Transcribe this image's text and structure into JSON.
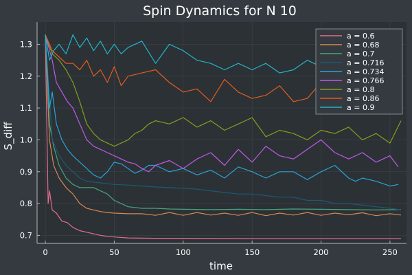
{
  "colors": {
    "background": "#343a40",
    "plot_area": "#2c3136",
    "grid": "#3f454b",
    "axis": "#b4b8bc",
    "text": "#ffffff",
    "legend_bg": "#343a40",
    "legend_border": "#9aa0a6"
  },
  "chart_data": {
    "type": "line",
    "title": "Spin Dynamics for N 10",
    "xlabel": "time",
    "ylabel": "S_diff",
    "xlim": [
      -6,
      262
    ],
    "ylim": [
      0.675,
      1.37
    ],
    "xticks": [
      0,
      50,
      100,
      150,
      200,
      250
    ],
    "xtick_labels": [
      "0",
      "50",
      "100",
      "150",
      "200",
      "250"
    ],
    "yticks": [
      0.7,
      0.8,
      0.9,
      1.0,
      1.1,
      1.2,
      1.3
    ],
    "ytick_labels": [
      "0.7",
      "0.8",
      "0.9",
      "1.0",
      "1.1",
      "1.2",
      "1.3"
    ],
    "grid": true,
    "legend_position": "top-right",
    "series": [
      {
        "name": "a = 0.6",
        "color": "#e26f8c",
        "x": [
          0,
          2,
          3,
          5,
          8,
          12,
          16,
          20,
          25,
          30,
          35,
          40,
          45,
          50,
          60,
          80,
          100,
          150,
          200,
          258
        ],
        "y": [
          1.33,
          0.8,
          0.84,
          0.78,
          0.77,
          0.745,
          0.74,
          0.725,
          0.715,
          0.71,
          0.705,
          0.7,
          0.697,
          0.695,
          0.692,
          0.691,
          0.691,
          0.69,
          0.69,
          0.69
        ]
      },
      {
        "name": "a = 0.68",
        "color": "#d6884f",
        "x": [
          0,
          3,
          6,
          10,
          15,
          20,
          25,
          30,
          35,
          40,
          45,
          50,
          60,
          70,
          80,
          90,
          100,
          110,
          120,
          130,
          140,
          150,
          160,
          170,
          180,
          190,
          200,
          210,
          220,
          230,
          240,
          250,
          258
        ],
        "y": [
          1.33,
          1.0,
          0.92,
          0.88,
          0.85,
          0.83,
          0.8,
          0.785,
          0.78,
          0.775,
          0.772,
          0.77,
          0.768,
          0.768,
          0.763,
          0.772,
          0.763,
          0.772,
          0.764,
          0.77,
          0.763,
          0.772,
          0.762,
          0.77,
          0.764,
          0.772,
          0.763,
          0.77,
          0.765,
          0.771,
          0.762,
          0.768,
          0.764
        ]
      },
      {
        "name": "a = 0.7",
        "color": "#46a57f",
        "x": [
          0,
          3,
          6,
          10,
          15,
          20,
          25,
          30,
          35,
          40,
          45,
          50,
          55,
          60,
          70,
          80,
          90,
          100,
          120,
          140,
          160,
          180,
          200,
          220,
          240,
          258
        ],
        "y": [
          1.33,
          1.05,
          0.98,
          0.92,
          0.88,
          0.86,
          0.85,
          0.85,
          0.85,
          0.84,
          0.83,
          0.81,
          0.8,
          0.79,
          0.785,
          0.785,
          0.783,
          0.782,
          0.781,
          0.782,
          0.781,
          0.783,
          0.782,
          0.781,
          0.78,
          0.781
        ]
      },
      {
        "name": "a = 0.716",
        "color": "#1a5b73",
        "x": [
          0,
          5,
          10,
          15,
          20,
          25,
          30,
          40,
          50,
          60,
          70,
          80,
          90,
          100,
          110,
          120,
          130,
          140,
          150,
          160,
          170,
          180,
          190,
          200,
          210,
          220,
          230,
          240,
          250,
          258
        ],
        "y": [
          1.33,
          1.0,
          0.95,
          0.92,
          0.9,
          0.88,
          0.87,
          0.865,
          0.86,
          0.858,
          0.855,
          0.852,
          0.85,
          0.848,
          0.845,
          0.84,
          0.835,
          0.83,
          0.83,
          0.825,
          0.82,
          0.82,
          0.81,
          0.81,
          0.8,
          0.8,
          0.795,
          0.79,
          0.785,
          0.78
        ]
      },
      {
        "name": "a = 0.734",
        "color": "#2aa3d6",
        "x": [
          0,
          3,
          5,
          8,
          12,
          16,
          20,
          25,
          30,
          35,
          40,
          45,
          50,
          55,
          60,
          65,
          70,
          75,
          80,
          90,
          100,
          110,
          120,
          130,
          140,
          150,
          160,
          170,
          180,
          190,
          200,
          210,
          220,
          225,
          230,
          240,
          250,
          256
        ],
        "y": [
          1.33,
          1.1,
          1.15,
          1.05,
          1.0,
          0.97,
          0.95,
          0.93,
          0.91,
          0.89,
          0.88,
          0.9,
          0.93,
          0.925,
          0.91,
          0.895,
          0.905,
          0.92,
          0.92,
          0.9,
          0.91,
          0.89,
          0.905,
          0.88,
          0.915,
          0.9,
          0.88,
          0.9,
          0.9,
          0.875,
          0.9,
          0.92,
          0.88,
          0.87,
          0.88,
          0.87,
          0.855,
          0.86
        ]
      },
      {
        "name": "a = 0.766",
        "color": "#c25ae5",
        "x": [
          0,
          5,
          8,
          12,
          16,
          20,
          25,
          30,
          35,
          40,
          45,
          50,
          55,
          60,
          65,
          70,
          75,
          80,
          90,
          100,
          110,
          120,
          130,
          140,
          150,
          160,
          170,
          180,
          190,
          200,
          210,
          220,
          230,
          240,
          250,
          256
        ],
        "y": [
          1.33,
          1.25,
          1.18,
          1.15,
          1.12,
          1.1,
          1.05,
          1.0,
          0.98,
          0.97,
          0.96,
          0.95,
          0.94,
          0.93,
          0.925,
          0.91,
          0.9,
          0.92,
          0.935,
          0.91,
          0.94,
          0.96,
          0.92,
          0.97,
          0.93,
          0.98,
          0.95,
          0.94,
          0.97,
          1.0,
          0.96,
          0.94,
          0.96,
          0.93,
          0.95,
          0.915
        ]
      },
      {
        "name": "a = 0.8",
        "color": "#8b9c1c",
        "x": [
          0,
          5,
          10,
          15,
          20,
          25,
          30,
          35,
          40,
          45,
          50,
          55,
          60,
          65,
          70,
          75,
          80,
          90,
          100,
          110,
          120,
          130,
          140,
          150,
          160,
          170,
          180,
          190,
          200,
          210,
          220,
          230,
          240,
          250,
          258
        ],
        "y": [
          1.33,
          1.27,
          1.25,
          1.22,
          1.18,
          1.12,
          1.05,
          1.02,
          1.0,
          0.99,
          0.98,
          0.99,
          1.0,
          1.02,
          1.03,
          1.05,
          1.06,
          1.05,
          1.07,
          1.04,
          1.06,
          1.03,
          1.05,
          1.07,
          1.01,
          1.03,
          1.02,
          1.0,
          1.03,
          1.02,
          1.04,
          1.0,
          1.02,
          0.99,
          1.06
        ]
      },
      {
        "name": "a = 0.86",
        "color": "#e45c1e",
        "x": [
          0,
          5,
          10,
          15,
          20,
          25,
          30,
          35,
          40,
          45,
          50,
          55,
          60,
          70,
          80,
          90,
          100,
          110,
          120,
          130,
          140,
          150,
          160,
          170,
          180,
          190,
          200,
          210,
          220,
          230,
          240,
          250,
          258
        ],
        "y": [
          1.33,
          1.28,
          1.26,
          1.24,
          1.24,
          1.22,
          1.25,
          1.2,
          1.22,
          1.18,
          1.23,
          1.17,
          1.2,
          1.21,
          1.22,
          1.18,
          1.15,
          1.16,
          1.12,
          1.19,
          1.15,
          1.13,
          1.14,
          1.17,
          1.12,
          1.13,
          1.18,
          1.16,
          1.14,
          1.19,
          1.16,
          1.17,
          1.14
        ]
      },
      {
        "name": "a = 0.9",
        "color": "#22b6c9",
        "x": [
          0,
          3,
          6,
          10,
          15,
          20,
          25,
          30,
          35,
          40,
          45,
          50,
          55,
          60,
          70,
          80,
          90,
          100,
          110,
          120,
          130,
          140,
          150,
          160,
          170,
          180,
          190,
          200,
          210,
          220,
          230,
          240,
          250,
          256
        ],
        "y": [
          1.33,
          1.25,
          1.28,
          1.3,
          1.27,
          1.33,
          1.29,
          1.32,
          1.28,
          1.31,
          1.27,
          1.3,
          1.27,
          1.29,
          1.31,
          1.24,
          1.3,
          1.28,
          1.25,
          1.24,
          1.22,
          1.24,
          1.22,
          1.24,
          1.21,
          1.22,
          1.25,
          1.23,
          1.27,
          1.2,
          1.24,
          1.22,
          1.2,
          1.17
        ]
      }
    ]
  }
}
